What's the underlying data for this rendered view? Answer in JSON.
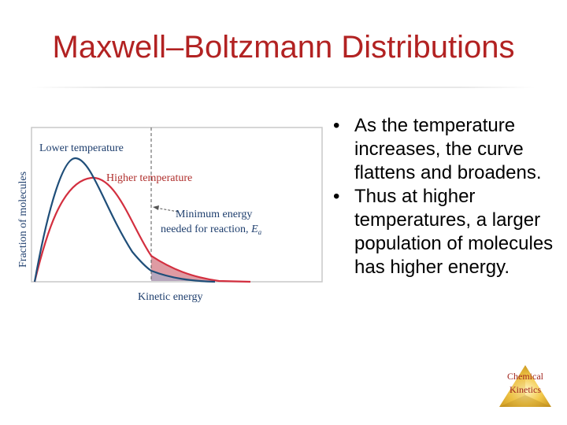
{
  "slide": {
    "title": "Maxwell–Boltzmann Distributions"
  },
  "figure": {
    "y_axis_label": "Fraction of molecules",
    "x_axis_label": "Kinetic energy",
    "lower_curve_label": "Lower temperature",
    "higher_curve_label": "Higher temperature",
    "threshold_label_line1": "Minimum energy",
    "threshold_label_line2": "needed for reaction,",
    "threshold_symbol": "E",
    "threshold_subscript": "a",
    "colors": {
      "lower_curve": "#1f4e79",
      "higher_curve": "#d32f3f",
      "shaded_region": "#d88a93",
      "label_text": "#1f3f6e",
      "frame": "#c8c8c8"
    }
  },
  "bullets": [
    "As the temperature increases, the curve flattens and broadens.",
    "Thus at higher temperatures, a larger population of molecules has higher energy."
  ],
  "badge": {
    "line1": "Chemical",
    "line2": "Kinetics"
  },
  "colors": {
    "title": "#b22222"
  }
}
